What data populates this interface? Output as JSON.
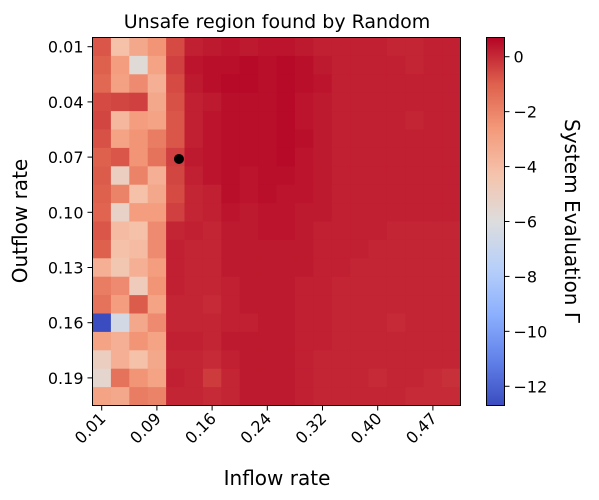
{
  "chart_data": {
    "type": "heatmap",
    "title": "Unsafe region found by Random",
    "xlabel": "Inflow rate",
    "ylabel": "Outflow rate",
    "x_tick_labels": [
      "0.01",
      "0.09",
      "0.16",
      "0.24",
      "0.32",
      "0.40",
      "0.47"
    ],
    "x_tick_columns": [
      0,
      3,
      6,
      9,
      12,
      15,
      18
    ],
    "y_tick_labels": [
      "0.01",
      "0.04",
      "0.07",
      "0.10",
      "0.13",
      "0.16",
      "0.19"
    ],
    "y_tick_rows": [
      0,
      3,
      6,
      9,
      12,
      15,
      18
    ],
    "n_cols": 20,
    "n_rows": 20,
    "colorbar": {
      "label": "System Evaluation Γ",
      "colormap": "coolwarm",
      "vmin": -12.7,
      "vmax": 0.7,
      "ticks": [
        0,
        -2,
        -4,
        -6,
        -8,
        -10,
        -12
      ]
    },
    "marker": {
      "x_index": 4.2,
      "y_index": 6.1,
      "color": "#000000"
    },
    "z": [
      [
        -0.8,
        -4.2,
        -3.2,
        -2.5,
        -0.6,
        0.2,
        0.3,
        0.4,
        0.3,
        0.4,
        0.4,
        0.3,
        0.2,
        0.2,
        0.2,
        0.2,
        0.1,
        0.1,
        0.2,
        0.2
      ],
      [
        -1.0,
        -2.8,
        -5.8,
        -3.0,
        -0.4,
        0.4,
        0.5,
        0.5,
        0.6,
        0.5,
        0.6,
        0.5,
        0.3,
        0.2,
        0.2,
        0.2,
        0.2,
        0.1,
        0.2,
        0.2
      ],
      [
        -1.2,
        -2.9,
        -2.2,
        -3.5,
        -0.6,
        0.3,
        0.5,
        0.6,
        0.6,
        0.5,
        0.6,
        0.5,
        0.4,
        0.2,
        0.2,
        0.2,
        0.2,
        0.2,
        0.2,
        0.2
      ],
      [
        -0.6,
        -0.5,
        -0.4,
        -3.2,
        -0.7,
        0.2,
        0.3,
        0.5,
        0.5,
        0.5,
        0.6,
        0.4,
        0.3,
        0.2,
        0.2,
        0.2,
        0.2,
        0.2,
        0.2,
        0.2
      ],
      [
        -0.5,
        -3.8,
        -2.8,
        -3.0,
        -0.8,
        0.2,
        0.4,
        0.5,
        0.5,
        0.5,
        0.6,
        0.4,
        0.3,
        0.2,
        0.2,
        0.2,
        0.2,
        0.1,
        0.2,
        0.2
      ],
      [
        -0.7,
        -3.0,
        -2.5,
        -1.8,
        -0.8,
        0.2,
        0.4,
        0.5,
        0.5,
        0.5,
        0.6,
        0.5,
        0.3,
        0.2,
        0.2,
        0.2,
        0.2,
        0.2,
        0.2,
        0.2
      ],
      [
        -1.0,
        -0.8,
        -2.5,
        -1.5,
        -0.4,
        0.3,
        0.4,
        0.5,
        0.5,
        0.5,
        0.6,
        0.4,
        0.3,
        0.2,
        0.2,
        0.2,
        0.2,
        0.2,
        0.2,
        0.2
      ],
      [
        -0.9,
        -5.0,
        -2.0,
        -3.5,
        -0.5,
        0.2,
        0.4,
        0.5,
        0.4,
        0.5,
        0.5,
        0.4,
        0.3,
        0.2,
        0.2,
        0.2,
        0.2,
        0.2,
        0.2,
        0.2
      ],
      [
        -1.0,
        -2.0,
        -4.2,
        -3.2,
        -0.6,
        0.1,
        0.2,
        0.5,
        0.4,
        0.5,
        0.4,
        0.4,
        0.3,
        0.2,
        0.2,
        0.2,
        0.2,
        0.2,
        0.2,
        0.2
      ],
      [
        -1.1,
        -5.2,
        -2.8,
        -2.8,
        -0.4,
        0.1,
        0.2,
        0.4,
        0.3,
        0.4,
        0.4,
        0.3,
        0.3,
        0.2,
        0.2,
        0.2,
        0.2,
        0.2,
        0.2,
        0.2
      ],
      [
        -0.8,
        -4.0,
        -4.2,
        -2.2,
        0.1,
        0.2,
        0.1,
        0.3,
        0.3,
        0.4,
        0.4,
        0.3,
        0.2,
        0.2,
        0.2,
        0.2,
        0.1,
        0.1,
        0.1,
        0.1
      ],
      [
        -1.0,
        -4.2,
        -4.0,
        -2.2,
        0.2,
        0.1,
        0.1,
        0.3,
        0.3,
        0.3,
        0.3,
        0.3,
        0.2,
        0.2,
        0.2,
        0.1,
        0.1,
        0.1,
        0.1,
        0.1
      ],
      [
        -3.5,
        -4.5,
        -3.5,
        -2.8,
        0.2,
        0.1,
        0.1,
        0.3,
        0.3,
        0.3,
        0.3,
        0.3,
        0.2,
        0.2,
        0.1,
        0.1,
        0.1,
        0.1,
        0.1,
        0.1
      ],
      [
        -1.8,
        -2.2,
        -4.8,
        -2.5,
        0.2,
        0.1,
        0.1,
        0.2,
        0.3,
        0.3,
        0.3,
        0.2,
        0.2,
        0.1,
        0.1,
        0.1,
        0.1,
        0.1,
        0.1,
        0.1
      ],
      [
        -1.5,
        -2.8,
        -0.9,
        -3.0,
        0.1,
        0.1,
        0.0,
        0.2,
        0.3,
        0.3,
        0.3,
        0.2,
        0.2,
        0.1,
        0.1,
        0.1,
        0.1,
        0.1,
        0.1,
        0.1
      ],
      [
        -12.7,
        -6.5,
        -3.2,
        -2.2,
        0.1,
        0.1,
        0.1,
        0.2,
        0.2,
        0.3,
        0.3,
        0.2,
        0.2,
        0.1,
        0.1,
        0.1,
        0.0,
        0.1,
        0.1,
        0.1
      ],
      [
        -3.0,
        -3.5,
        -2.5,
        -3.0,
        0.2,
        0.2,
        0.1,
        0.3,
        0.3,
        0.3,
        0.3,
        0.2,
        0.2,
        0.1,
        0.1,
        0.1,
        0.1,
        0.1,
        0.1,
        0.1
      ],
      [
        -5.0,
        -3.5,
        -4.2,
        -3.2,
        0.1,
        0.1,
        0.0,
        0.2,
        0.3,
        0.3,
        0.3,
        0.2,
        0.1,
        0.1,
        0.1,
        0.1,
        0.1,
        0.1,
        0.1,
        0.1
      ],
      [
        -5.5,
        -1.5,
        -2.5,
        -3.0,
        0.2,
        0.1,
        -0.3,
        0.1,
        0.3,
        0.3,
        0.3,
        0.2,
        0.1,
        0.1,
        0.1,
        0.0,
        0.1,
        0.1,
        0.0,
        -0.1
      ],
      [
        -3.0,
        -3.2,
        -1.8,
        -2.0,
        0.1,
        0.1,
        0.0,
        0.1,
        0.3,
        0.3,
        0.3,
        0.2,
        0.1,
        0.1,
        0.1,
        0.1,
        0.1,
        0.0,
        0.0,
        0.0
      ]
    ]
  }
}
